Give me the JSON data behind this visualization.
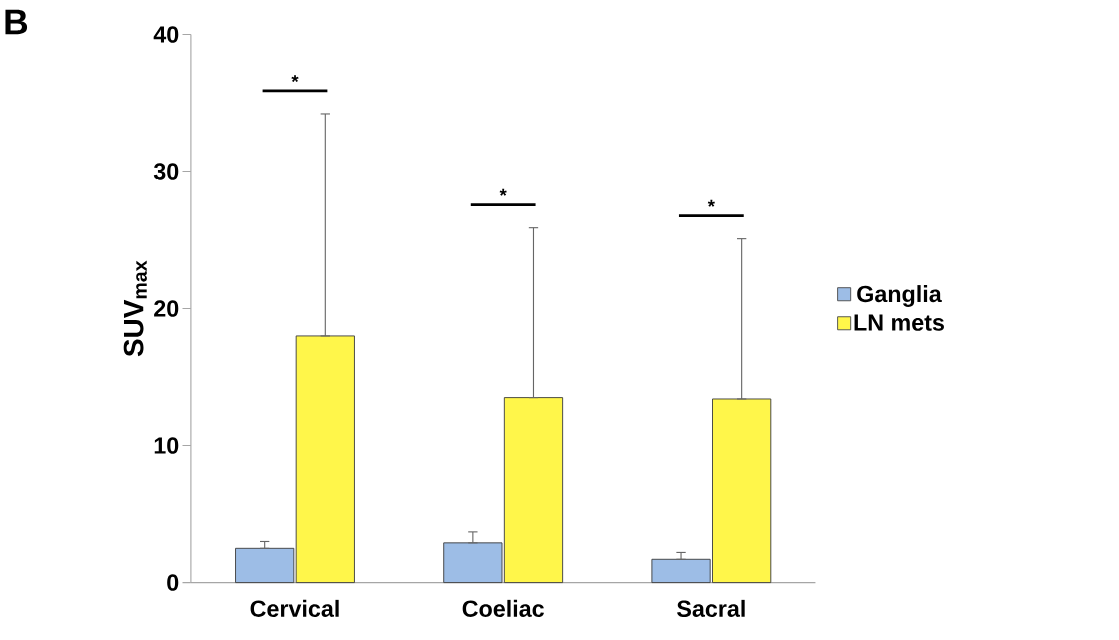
{
  "chart_data": {
    "type": "bar",
    "ylabel": "SUV$_{max}$",
    "categories": [
      "Cervical",
      "Coeliac",
      "Sacral"
    ],
    "series": [
      {
        "name": "Ganglia",
        "color": "#9dbde6",
        "values": [
          2.5,
          2.9,
          1.7
        ],
        "errors": [
          [
            2.5,
            3.0
          ],
          [
            2.9,
            3.7
          ],
          [
            1.7,
            2.2
          ]
        ]
      },
      {
        "name": "LN mets",
        "color": "#fff64a",
        "values": [
          18.0,
          13.5,
          13.4
        ],
        "errors": [
          [
            18.0,
            34.2
          ],
          [
            13.5,
            25.9
          ],
          [
            13.4,
            25.1
          ]
        ]
      }
    ],
    "ylim": [
      0,
      40
    ],
    "yticks": [
      0,
      10,
      20,
      30,
      40
    ],
    "grid": false,
    "legend": "right",
    "annotations": [
      "B",
      "*",
      "*",
      "*"
    ]
  }
}
